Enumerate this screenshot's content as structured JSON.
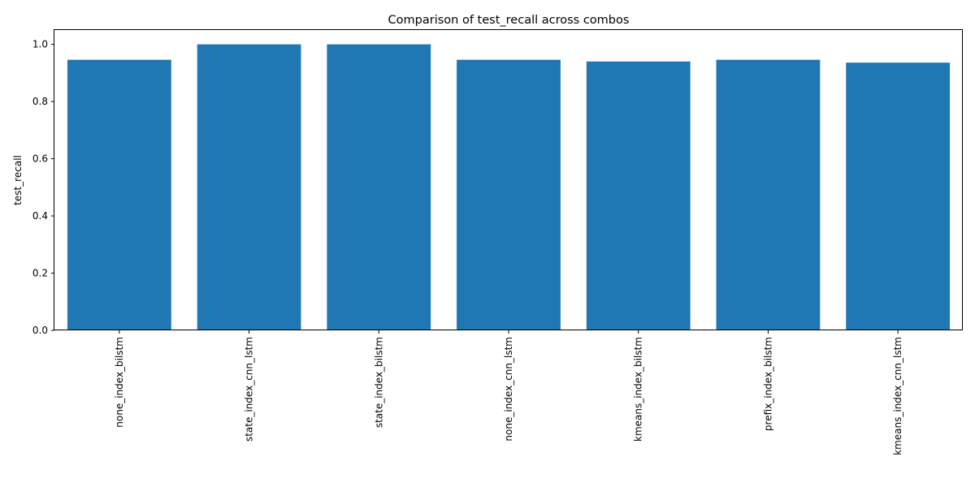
{
  "chart_data": {
    "type": "bar",
    "title": "Comparison of test_recall across combos",
    "xlabel": "",
    "ylabel": "test_recall",
    "categories": [
      "none_index_bilstm",
      "state_index_cnn_lstm",
      "state_index_bilstm",
      "none_index_cnn_lstm",
      "kmeans_index_bilstm",
      "prefix_index_bilstm",
      "kmeans_index_cnn_lstm"
    ],
    "values": [
      0.946,
      1.0,
      1.0,
      0.946,
      0.94,
      0.946,
      0.936
    ],
    "ylim": [
      0,
      1.05
    ],
    "yticks": [
      "0.0",
      "0.2",
      "0.4",
      "0.6",
      "0.8",
      "1.0"
    ],
    "bar_color": "#1f77b4",
    "grid": false,
    "legend": "none"
  }
}
